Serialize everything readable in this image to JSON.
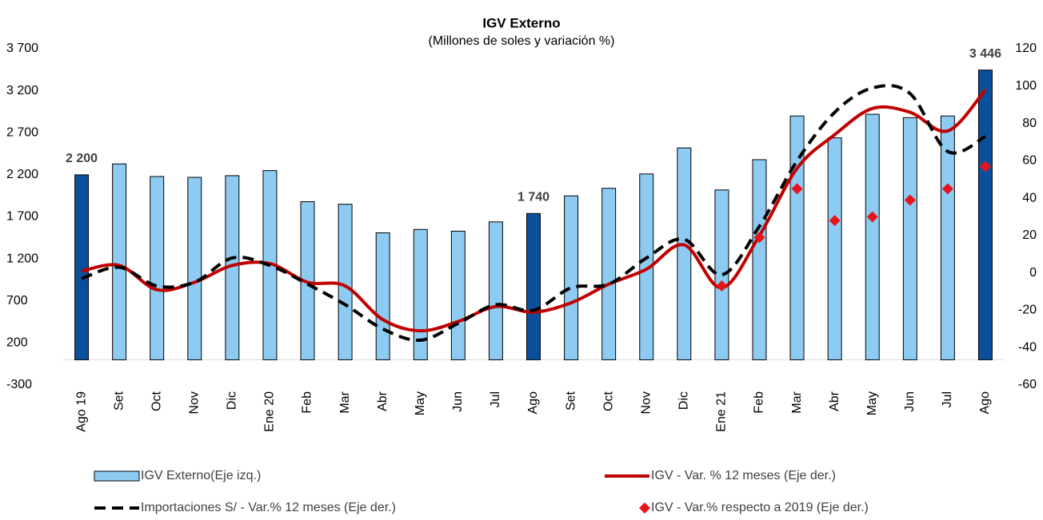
{
  "chart_data": {
    "type": "bar-line",
    "title": "IGV Externo",
    "subtitle": "(Millones de soles y variación %)",
    "categories": [
      "Ago 19",
      "Set",
      "Oct",
      "Nov",
      "Dic",
      "Ene 20",
      "Feb",
      "Mar",
      "Abr",
      "May",
      "Jun",
      "Jul",
      "Ago",
      "Set",
      "Oct",
      "Nov",
      "Dic",
      "Ene 21",
      "Feb",
      "Mar",
      "Abr",
      "May",
      "Jun",
      "Jul",
      "Ago"
    ],
    "ylim": [
      -300,
      3700
    ],
    "yticks": [
      -300,
      200,
      700,
      {
        "value": 1200,
        "label": "1 200"
      },
      {
        "value": 1700,
        "label": "1 700"
      },
      {
        "value": 2200,
        "label": "2 200"
      },
      {
        "value": 2700,
        "label": "2 700"
      },
      {
        "value": 3200,
        "label": "3 200"
      },
      {
        "value": 3700,
        "label": "3 700"
      }
    ],
    "y2lim": [
      -60,
      120
    ],
    "y2ticks": [
      -60,
      -40,
      -20,
      0,
      20,
      40,
      60,
      80,
      100,
      120
    ],
    "series": [
      {
        "name": "IGV Externo(Eje izq.)",
        "kind": "bar",
        "color": "#8ecbf2",
        "colors": [
          "#0b4f9c",
          "#8ecbf2",
          "#8ecbf2",
          "#8ecbf2",
          "#8ecbf2",
          "#8ecbf2",
          "#8ecbf2",
          "#8ecbf2",
          "#8ecbf2",
          "#8ecbf2",
          "#8ecbf2",
          "#8ecbf2",
          "#0b4f9c",
          "#8ecbf2",
          "#8ecbf2",
          "#8ecbf2",
          "#8ecbf2",
          "#8ecbf2",
          "#8ecbf2",
          "#8ecbf2",
          "#8ecbf2",
          "#8ecbf2",
          "#8ecbf2",
          "#8ecbf2",
          "#0b4f9c"
        ],
        "values": [
          2200,
          2330,
          2180,
          2170,
          2190,
          2250,
          1880,
          1850,
          1510,
          1550,
          1530,
          1640,
          1740,
          1950,
          2040,
          2210,
          2520,
          2020,
          2380,
          2900,
          2640,
          2920,
          2880,
          2900,
          3446
        ],
        "value_labels": [
          "2 200",
          null,
          null,
          null,
          null,
          null,
          null,
          null,
          null,
          null,
          null,
          null,
          "1 740",
          null,
          null,
          null,
          null,
          null,
          null,
          null,
          null,
          null,
          null,
          null,
          "3 446"
        ]
      },
      {
        "name": "IGV - Var. % 12 meses (Eje der.)",
        "kind": "line",
        "color": "#c00000",
        "axis": "y2",
        "values": [
          1,
          4,
          -9,
          -5,
          4,
          5,
          -5,
          -7,
          -25,
          -31,
          -26,
          -18,
          -21,
          -16,
          -6,
          2,
          15,
          -8,
          20,
          56,
          74,
          88,
          86,
          76,
          98
        ]
      },
      {
        "name": "Importaciones S/ - Var.% 12 meses (Eje der.)",
        "kind": "dashed",
        "color": "#000000",
        "axis": "y2",
        "values": [
          -3,
          3,
          -7,
          -5,
          8,
          4,
          -6,
          -17,
          -30,
          -36,
          -27,
          -17,
          -20,
          -8,
          -6,
          8,
          18,
          -1,
          25,
          60,
          86,
          99,
          96,
          65,
          73
        ]
      },
      {
        "name": "IGV - Var.% respecto a 2019 (Eje der.)",
        "kind": "marker",
        "color": "#e8141c",
        "axis": "y2",
        "values": [
          null,
          null,
          null,
          null,
          null,
          null,
          null,
          null,
          null,
          null,
          null,
          null,
          null,
          null,
          null,
          null,
          null,
          -7,
          19,
          45,
          28,
          30,
          39,
          45,
          57
        ]
      }
    ]
  }
}
